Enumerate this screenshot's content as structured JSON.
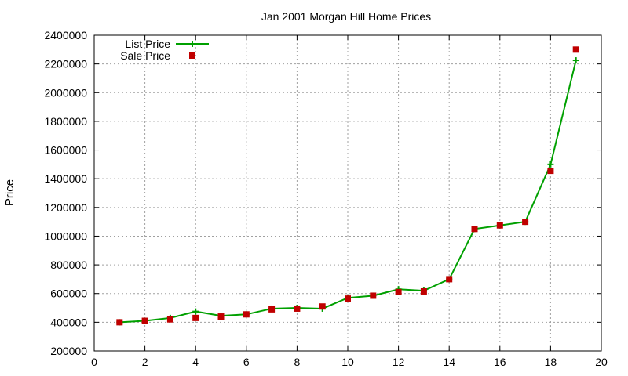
{
  "chart_data": {
    "type": "line",
    "title": "Jan 2001 Morgan Hill Home Prices",
    "xlabel": "",
    "ylabel": "Price",
    "xlim": [
      0,
      20
    ],
    "ylim": [
      200000,
      2400000
    ],
    "xticks": [
      0,
      2,
      4,
      6,
      8,
      10,
      12,
      14,
      16,
      18,
      20
    ],
    "yticks": [
      200000,
      400000,
      600000,
      800000,
      1000000,
      1200000,
      1400000,
      1600000,
      1800000,
      2000000,
      2200000,
      2400000
    ],
    "grid": true,
    "legend_position": "top-left",
    "x": [
      1,
      2,
      3,
      4,
      5,
      6,
      7,
      8,
      9,
      10,
      11,
      12,
      13,
      14,
      15,
      16,
      17,
      18,
      19
    ],
    "series": [
      {
        "name": "List Price",
        "style": "line-plus",
        "color": "#00a000",
        "values": [
          400000,
          410000,
          430000,
          475000,
          445000,
          455000,
          495000,
          500000,
          495000,
          570000,
          585000,
          630000,
          620000,
          700000,
          1050000,
          1075000,
          1100000,
          1500000,
          2225000
        ]
      },
      {
        "name": "Sale Price",
        "style": "square",
        "color": "#c00000",
        "values": [
          400000,
          410000,
          420000,
          430000,
          440000,
          455000,
          490000,
          495000,
          510000,
          565000,
          585000,
          610000,
          615000,
          700000,
          1050000,
          1075000,
          1100000,
          1455000,
          2300000
        ]
      }
    ]
  }
}
